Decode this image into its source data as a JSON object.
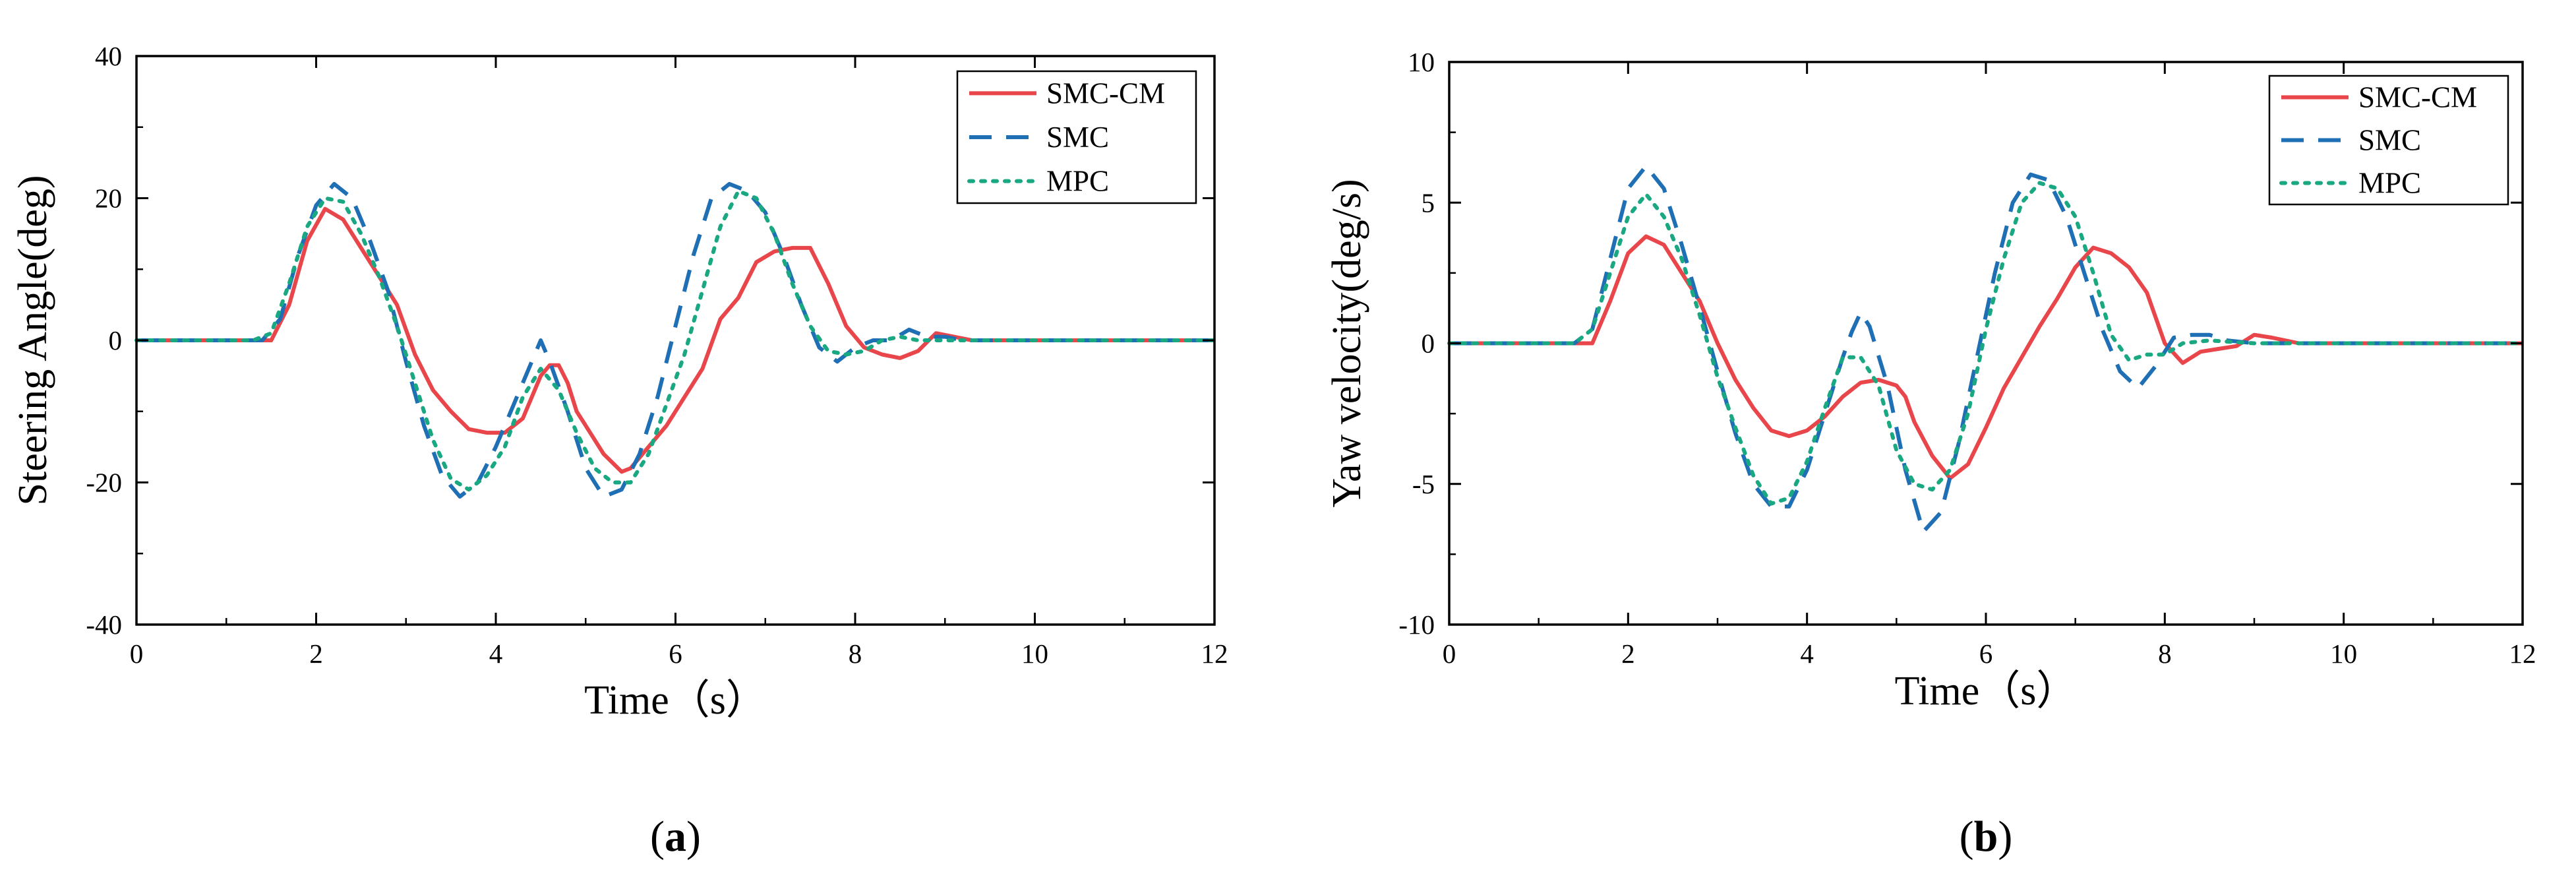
{
  "chart_data": [
    {
      "type": "line",
      "panel_label": "(a)",
      "xlabel": "Time（s）",
      "ylabel": "Steering Angle(deg)",
      "xlim": [
        0,
        12
      ],
      "ylim": [
        -40,
        40
      ],
      "xticks": [
        0,
        2,
        4,
        6,
        8,
        10,
        12
      ],
      "yticks": [
        -40,
        -20,
        0,
        20,
        40
      ],
      "legend": "top-right",
      "grid": false,
      "series": [
        {
          "name": "SMC-CM",
          "color": "#e8464a",
          "style": "solid",
          "x": [
            0,
            1.5,
            1.7,
            1.9,
            2.1,
            2.3,
            2.5,
            2.7,
            2.9,
            3.1,
            3.3,
            3.5,
            3.7,
            3.9,
            4.1,
            4.3,
            4.5,
            4.6,
            4.7,
            4.8,
            4.9,
            5.0,
            5.2,
            5.4,
            5.5,
            5.7,
            5.9,
            6.1,
            6.3,
            6.5,
            6.7,
            6.9,
            7.1,
            7.3,
            7.5,
            7.7,
            7.9,
            8.1,
            8.3,
            8.5,
            8.7,
            8.9,
            9.1,
            9.3,
            10,
            11,
            12
          ],
          "y": [
            0,
            0,
            5,
            14,
            18.5,
            17,
            13,
            9,
            5,
            -2,
            -7,
            -10,
            -12.5,
            -13,
            -13,
            -11,
            -5,
            -3.5,
            -3.5,
            -6,
            -10,
            -12,
            -16,
            -18.5,
            -18,
            -15,
            -12,
            -8,
            -4,
            3,
            6,
            11,
            12.5,
            13,
            13,
            8,
            2,
            -1,
            -2,
            -2.5,
            -1.5,
            1,
            0.5,
            0,
            0,
            0,
            0
          ]
        },
        {
          "name": "SMC",
          "color": "#1f6fb5",
          "style": "dashed",
          "x": [
            0,
            1.4,
            1.6,
            1.8,
            2.0,
            2.2,
            2.4,
            2.6,
            2.8,
            3.0,
            3.2,
            3.4,
            3.6,
            3.8,
            4.0,
            4.2,
            4.4,
            4.5,
            4.6,
            4.8,
            5.0,
            5.2,
            5.4,
            5.6,
            5.8,
            6.0,
            6.2,
            6.4,
            6.6,
            6.8,
            7.0,
            7.2,
            7.4,
            7.6,
            7.8,
            8.0,
            8.2,
            8.4,
            8.6,
            8.8,
            9.0,
            9.2,
            9.5,
            10,
            11,
            12
          ],
          "y": [
            0,
            0,
            3,
            12,
            19,
            22,
            20,
            14,
            7,
            -3,
            -12,
            -19,
            -22,
            -20,
            -15,
            -9,
            -3,
            0,
            -3,
            -10,
            -18,
            -22,
            -21,
            -16,
            -8,
            2,
            12,
            20,
            22,
            21,
            18,
            12,
            5,
            -1,
            -3,
            -1,
            0,
            0,
            1.5,
            0.5,
            0.5,
            0,
            0,
            0,
            0,
            0
          ]
        },
        {
          "name": "MPC",
          "color": "#1aa882",
          "style": "dotted",
          "x": [
            0,
            1.3,
            1.5,
            1.7,
            1.9,
            2.1,
            2.3,
            2.5,
            2.7,
            2.9,
            3.1,
            3.3,
            3.5,
            3.7,
            3.9,
            4.1,
            4.3,
            4.5,
            4.7,
            4.9,
            5.1,
            5.3,
            5.5,
            5.7,
            5.9,
            6.1,
            6.3,
            6.5,
            6.7,
            6.9,
            7.1,
            7.3,
            7.5,
            7.7,
            7.9,
            8.1,
            8.3,
            8.5,
            8.7,
            9.0,
            9.5,
            10,
            11,
            12
          ],
          "y": [
            0,
            0,
            1,
            8,
            16,
            20,
            19.5,
            15,
            9,
            2,
            -6,
            -14,
            -19.5,
            -21,
            -19,
            -15,
            -8,
            -4,
            -7,
            -13,
            -18,
            -20,
            -20,
            -16,
            -9,
            -2,
            7,
            16,
            21,
            20,
            15,
            8,
            2,
            -1.5,
            -2,
            -1.5,
            0,
            0.5,
            0,
            0,
            0,
            0,
            0,
            0
          ]
        }
      ]
    },
    {
      "type": "line",
      "panel_label": "(b)",
      "xlabel": "Time（s）",
      "ylabel": "Yaw velocity(deg/s)",
      "xlim": [
        0,
        12
      ],
      "ylim": [
        -10,
        10
      ],
      "xticks": [
        0,
        2,
        4,
        6,
        8,
        10,
        12
      ],
      "yticks": [
        -10,
        -5,
        0,
        5,
        10
      ],
      "legend": "top-right",
      "grid": false,
      "series": [
        {
          "name": "SMC-CM",
          "color": "#e8464a",
          "style": "solid",
          "x": [
            0,
            1.6,
            1.8,
            2.0,
            2.2,
            2.4,
            2.6,
            2.8,
            3.0,
            3.2,
            3.4,
            3.6,
            3.8,
            4.0,
            4.2,
            4.4,
            4.6,
            4.8,
            5.0,
            5.1,
            5.2,
            5.4,
            5.6,
            5.8,
            6.0,
            6.2,
            6.4,
            6.6,
            6.8,
            7.0,
            7.2,
            7.4,
            7.6,
            7.8,
            8.0,
            8.2,
            8.4,
            8.6,
            8.8,
            9.0,
            9.2,
            9.5,
            10,
            11,
            12
          ],
          "y": [
            0,
            0,
            1.5,
            3.2,
            3.8,
            3.5,
            2.5,
            1.5,
            0,
            -1.3,
            -2.3,
            -3.1,
            -3.3,
            -3.1,
            -2.6,
            -1.9,
            -1.4,
            -1.3,
            -1.5,
            -1.9,
            -2.8,
            -4,
            -4.8,
            -4.3,
            -3,
            -1.6,
            -0.5,
            0.6,
            1.6,
            2.7,
            3.4,
            3.2,
            2.7,
            1.8,
            0,
            -0.7,
            -0.3,
            -0.2,
            -0.1,
            0.3,
            0.2,
            0,
            0,
            0,
            0
          ]
        },
        {
          "name": "SMC",
          "color": "#1f6fb5",
          "style": "dashed",
          "x": [
            0,
            1.4,
            1.6,
            1.8,
            2.0,
            2.2,
            2.4,
            2.6,
            2.8,
            3.0,
            3.2,
            3.4,
            3.6,
            3.8,
            4.0,
            4.2,
            4.4,
            4.5,
            4.6,
            4.7,
            4.9,
            5.1,
            5.3,
            5.5,
            5.7,
            5.9,
            6.1,
            6.3,
            6.5,
            6.7,
            6.9,
            7.1,
            7.3,
            7.5,
            7.7,
            7.9,
            8.1,
            8.3,
            8.5,
            8.7,
            9.0,
            9.5,
            10,
            11,
            12
          ],
          "y": [
            0,
            0,
            0.5,
            3,
            5.5,
            6.3,
            5.5,
            3.5,
            1.3,
            -1,
            -3.2,
            -5,
            -5.8,
            -5.8,
            -4.5,
            -2.5,
            -0.5,
            0.4,
            1.1,
            0.6,
            -1.5,
            -4.5,
            -6.7,
            -6,
            -3.5,
            -0.5,
            2.5,
            5,
            6,
            5.8,
            4.5,
            2.5,
            0.5,
            -1,
            -1.6,
            -0.8,
            0.2,
            0.3,
            0.3,
            0.1,
            0,
            0,
            0,
            0,
            0
          ]
        },
        {
          "name": "MPC",
          "color": "#1aa882",
          "style": "dotted",
          "x": [
            0,
            1.4,
            1.6,
            1.8,
            2.0,
            2.2,
            2.4,
            2.6,
            2.8,
            3.0,
            3.2,
            3.4,
            3.6,
            3.8,
            4.0,
            4.2,
            4.4,
            4.6,
            4.8,
            5.0,
            5.2,
            5.4,
            5.6,
            5.8,
            6.0,
            6.2,
            6.4,
            6.6,
            6.8,
            7.0,
            7.2,
            7.4,
            7.6,
            7.8,
            8.0,
            8.2,
            8.5,
            9.0,
            9.5,
            10,
            11,
            12
          ],
          "y": [
            0,
            0,
            0.5,
            2.5,
            4.5,
            5.3,
            4.5,
            3,
            1,
            -1.2,
            -3,
            -4.7,
            -5.7,
            -5.5,
            -4.2,
            -2.3,
            -0.5,
            -0.5,
            -1.5,
            -3.8,
            -5,
            -5.2,
            -4.5,
            -2.5,
            0.5,
            3,
            5,
            5.7,
            5.5,
            4.5,
            2.5,
            0.3,
            -0.6,
            -0.4,
            -0.4,
            0,
            0.1,
            0,
            0,
            0,
            0,
            0
          ]
        }
      ]
    }
  ]
}
